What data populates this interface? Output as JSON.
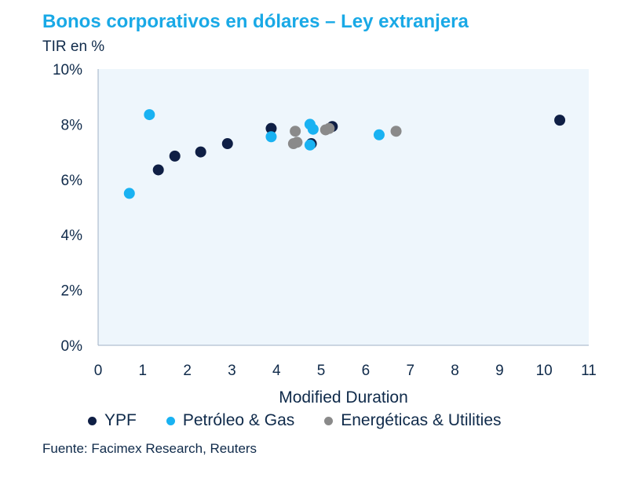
{
  "title": "Bonos corporativos en dólares – Ley extranjera",
  "subtitle": "TIR en %",
  "source": "Fuente: Facimex Research, Reuters",
  "colors": {
    "title": "#19a9e6",
    "plot_bg": "#eef6fc",
    "text": "#0f2a4a"
  },
  "chart_data": {
    "type": "scatter",
    "xlabel": "Modified Duration",
    "ylabel": "TIR en %",
    "xlim": [
      0,
      11
    ],
    "ylim": [
      0,
      10
    ],
    "x_ticks": [
      "0",
      "1",
      "2",
      "3",
      "4",
      "5",
      "6",
      "7",
      "8",
      "9",
      "10",
      "11"
    ],
    "y_ticks": [
      "0%",
      "2%",
      "4%",
      "6%",
      "8%",
      "10%"
    ],
    "grid": false,
    "legend_position": "bottom",
    "series": [
      {
        "name": "YPF",
        "color": "#0f1f45",
        "points": [
          [
            1.35,
            6.35
          ],
          [
            1.72,
            6.85
          ],
          [
            2.3,
            7.0
          ],
          [
            2.9,
            7.3
          ],
          [
            3.88,
            7.85
          ],
          [
            4.78,
            7.3
          ],
          [
            5.25,
            7.92
          ],
          [
            10.35,
            8.15
          ]
        ]
      },
      {
        "name": "Petróleo & Gas",
        "color": "#19b2f2",
        "points": [
          [
            0.7,
            5.5
          ],
          [
            1.15,
            8.35
          ],
          [
            3.88,
            7.55
          ],
          [
            4.75,
            8.0
          ],
          [
            4.82,
            7.82
          ],
          [
            4.75,
            7.25
          ],
          [
            6.3,
            7.62
          ]
        ]
      },
      {
        "name": "Energéticas & Utilities",
        "color": "#8a8a8a",
        "points": [
          [
            4.42,
            7.75
          ],
          [
            4.38,
            7.3
          ],
          [
            4.46,
            7.35
          ],
          [
            5.1,
            7.8
          ],
          [
            5.18,
            7.85
          ],
          [
            6.68,
            7.75
          ]
        ]
      }
    ]
  }
}
